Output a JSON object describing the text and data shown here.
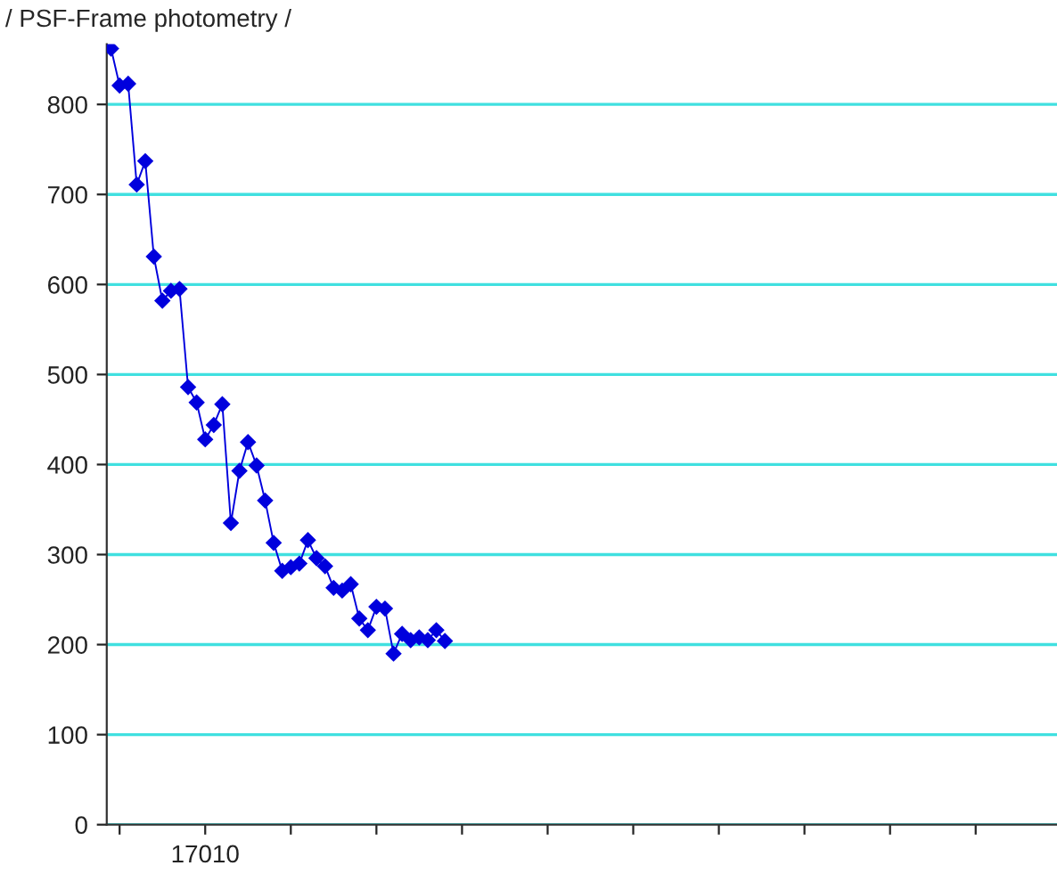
{
  "chart_data": {
    "type": "line",
    "title": "/ PSF-Frame photometry /",
    "categories": [
      null,
      null,
      null,
      null,
      null,
      null,
      null,
      null,
      null,
      null,
      null,
      null,
      null,
      null,
      null,
      null,
      null,
      null,
      null,
      null,
      null,
      null,
      null,
      null,
      null,
      null,
      null,
      null,
      null,
      null,
      null,
      null,
      null,
      null,
      null,
      null,
      null,
      null,
      null,
      null,
      null,
      null,
      null,
      null,
      null,
      null,
      null,
      null,
      null,
      null,
      null,
      null,
      null,
      null,
      null,
      null,
      null,
      null,
      null,
      null,
      null,
      null,
      null,
      null,
      null,
      null,
      null,
      null,
      null,
      null,
      null,
      null,
      null,
      null,
      null,
      null,
      null,
      null,
      null,
      null,
      null,
      null,
      null,
      null,
      null,
      null,
      null,
      null,
      null,
      null,
      null,
      null,
      null,
      null,
      null,
      null,
      null,
      null,
      null,
      null,
      null,
      null,
      null,
      null,
      null,
      null,
      null,
      null,
      null,
      null,
      null
    ],
    "series": [
      {
        "color": "#0000dd",
        "values": [
          862,
          821,
          823,
          711,
          737,
          631,
          582,
          593,
          595,
          486,
          469,
          428,
          444,
          467,
          335,
          393,
          425,
          399,
          360,
          313,
          282,
          286,
          290,
          316,
          296,
          287,
          263,
          260,
          267,
          229,
          216,
          242,
          240,
          190,
          212,
          205,
          208,
          205,
          216,
          204,
          null,
          null,
          null,
          null,
          null,
          null,
          null,
          null,
          null,
          null,
          null,
          null,
          null,
          null,
          null,
          null,
          null,
          null,
          null,
          null,
          null,
          null,
          null,
          null,
          null,
          null,
          null,
          null,
          null,
          null,
          null,
          null,
          null,
          null,
          null,
          null,
          null,
          null,
          null,
          null,
          null,
          null,
          null,
          null,
          null,
          null,
          null,
          null,
          null,
          null,
          null,
          null,
          null,
          null,
          null,
          null,
          null,
          null,
          null,
          null,
          null,
          null,
          null,
          null,
          null,
          null,
          null,
          null,
          null,
          null,
          null
        ]
      }
    ],
    "annotations": [
      "17010"
    ],
    "ylim": [
      0,
      867
    ],
    "yticks": [
      0,
      100,
      200,
      300,
      400,
      500,
      600,
      700,
      800
    ],
    "grid": "y",
    "marker": "diamond",
    "line_style": "solid"
  }
}
